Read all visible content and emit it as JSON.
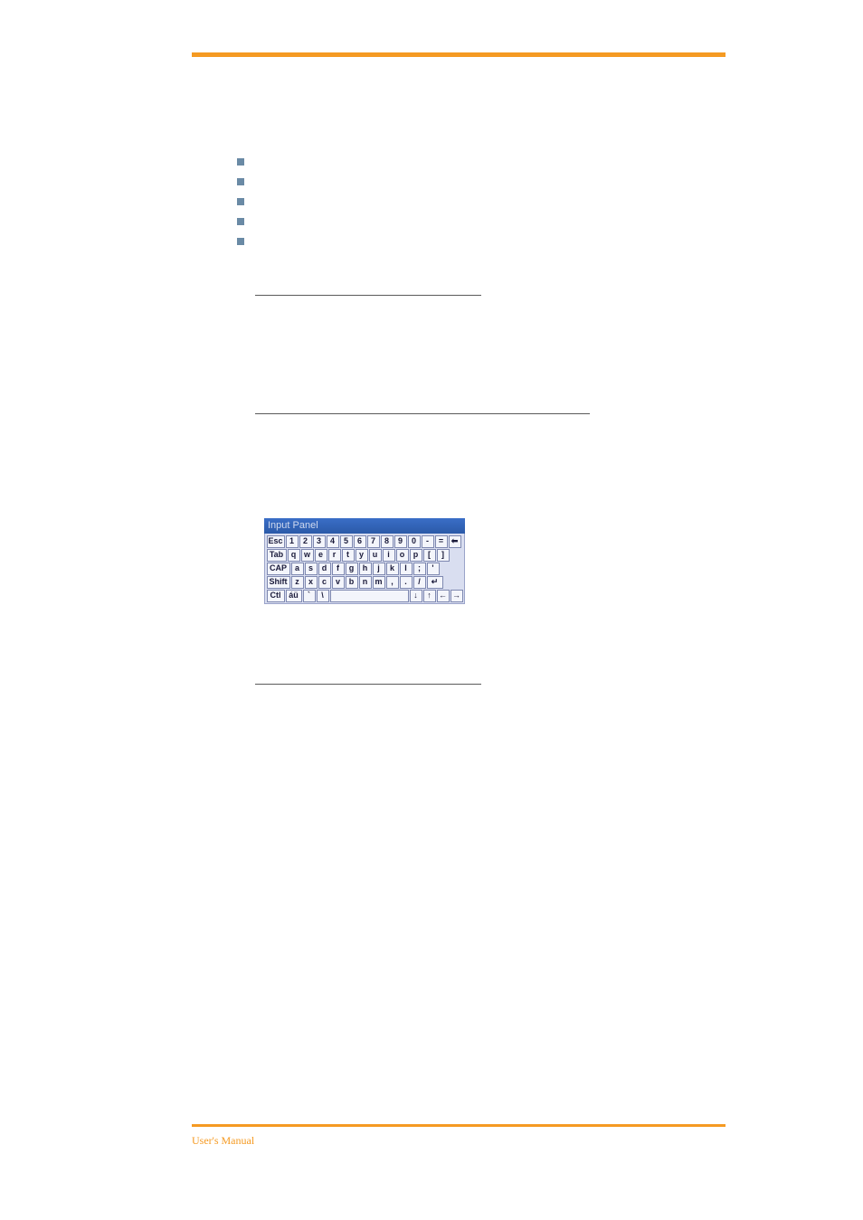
{
  "colors": {
    "accent_rule": "#f59a22",
    "bullet": "#6a8aa5",
    "divider": "#5a5a5a",
    "kbd_title_bg_top": "#3a6ec7",
    "kbd_title_bg_bottom": "#2b5aa8",
    "kbd_title_text": "#cfd9ef",
    "kbd_body_bg": "#d9def0",
    "kbd_body_border": "#9aa3c9",
    "key_bg": "#f3f5fb",
    "key_border": "#7e88b0",
    "key_text": "#1a1a3a",
    "footer_text": "#f59a22",
    "page_bg": "#ffffff"
  },
  "bullets": {
    "count": 5
  },
  "keyboard": {
    "title": "Input Panel",
    "rows": [
      [
        "Esc",
        "1",
        "2",
        "3",
        "4",
        "5",
        "6",
        "7",
        "8",
        "9",
        "0",
        "-",
        "=",
        "⬅"
      ],
      [
        "Tab",
        "q",
        "w",
        "e",
        "r",
        "t",
        "y",
        "u",
        "i",
        "o",
        "p",
        "[",
        "]"
      ],
      [
        "CAP",
        "a",
        "s",
        "d",
        "f",
        "g",
        "h",
        "j",
        "k",
        "l",
        ";",
        "'"
      ],
      [
        "Shift",
        "z",
        "x",
        "c",
        "v",
        "b",
        "n",
        "m",
        ",",
        ".",
        "/",
        "↵"
      ],
      [
        "Ctl",
        "áü",
        "`",
        "\\",
        " ",
        "↓",
        "↑",
        "←",
        "→"
      ]
    ]
  },
  "footer": {
    "text": "User's Manual"
  }
}
